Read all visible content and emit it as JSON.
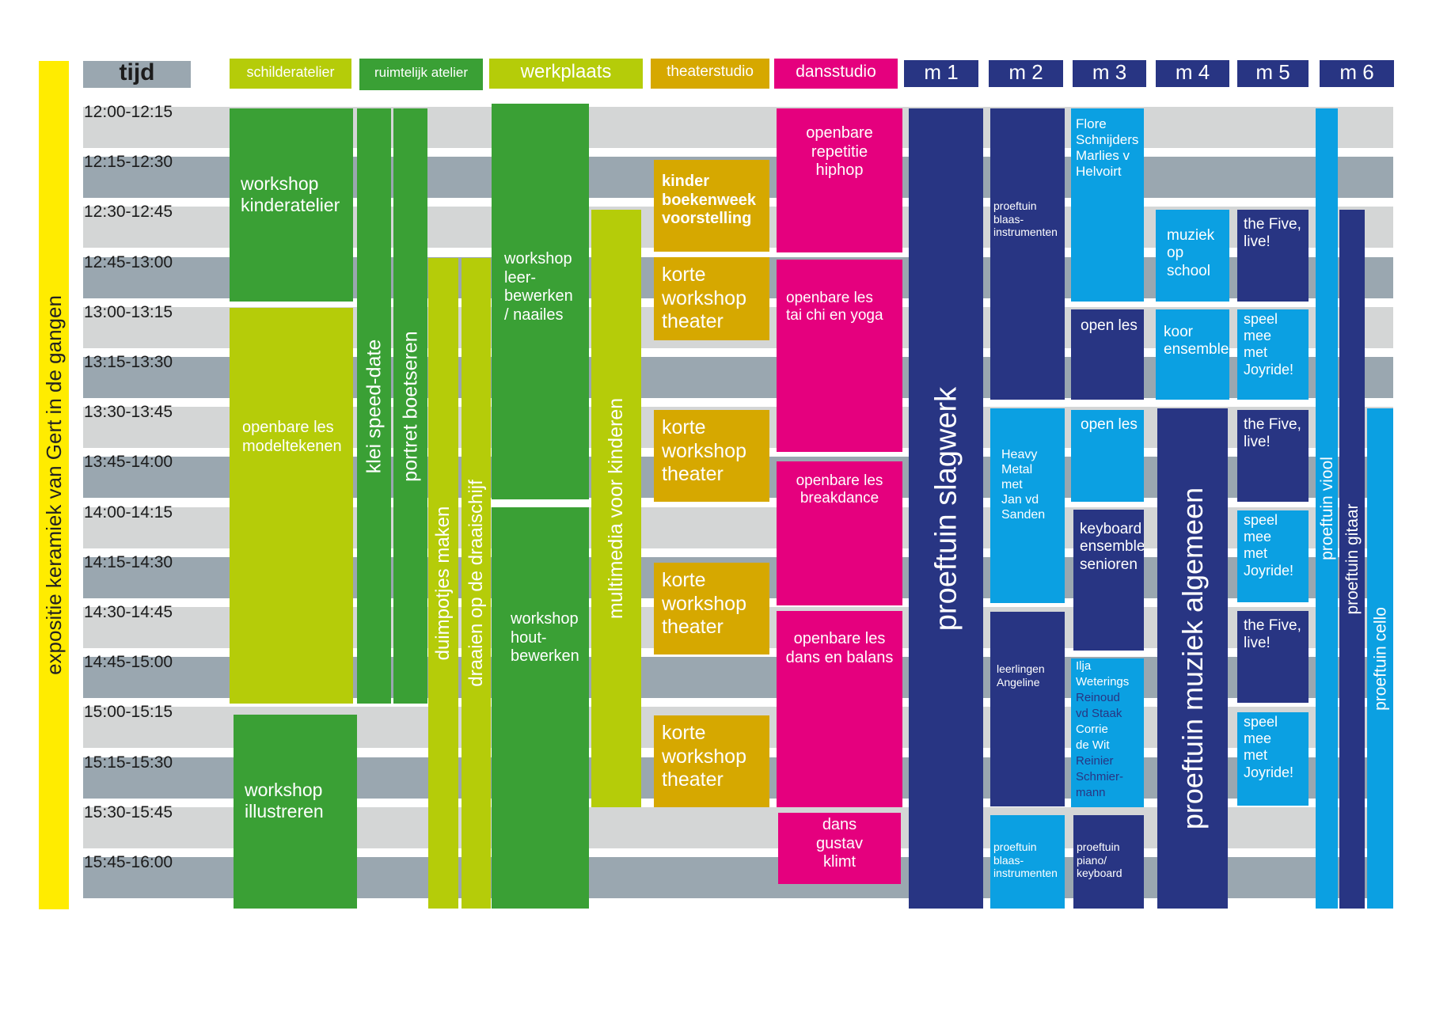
{
  "colors": {
    "light_row": "#d4d6d6",
    "dark_row": "#9aa7b0",
    "yellow": "#ffec00",
    "lime": "#b5cc09",
    "green": "#3aa035",
    "ochre": "#d6a800",
    "magenta": "#e5007e",
    "navy": "#283583",
    "sky": "#0ba0e2",
    "time_header": "#9aa7b0"
  },
  "side_label": "expositie keramiek van Gert in de gangen",
  "headers": [
    {
      "id": "tijd",
      "label": "tijd",
      "color": "time_header"
    },
    {
      "id": "schilderatelier",
      "label": "schilderatelier",
      "color": "lime"
    },
    {
      "id": "ruimtelijk",
      "label": "ruimtelijk atelier",
      "color": "green"
    },
    {
      "id": "werkplaats",
      "label": "werkplaats",
      "color": "lime"
    },
    {
      "id": "theaterstudio",
      "label": "theaterstudio",
      "color": "ochre"
    },
    {
      "id": "dansstudio",
      "label": "dansstudio",
      "color": "magenta"
    },
    {
      "id": "m1",
      "label": "m 1",
      "color": "navy"
    },
    {
      "id": "m2",
      "label": "m 2",
      "color": "navy"
    },
    {
      "id": "m3",
      "label": "m 3",
      "color": "navy"
    },
    {
      "id": "m4",
      "label": "m 4",
      "color": "navy"
    },
    {
      "id": "m5",
      "label": "m 5",
      "color": "navy"
    },
    {
      "id": "m6",
      "label": "m 6",
      "color": "navy"
    }
  ],
  "time_slots": [
    "12:00-12:15",
    "12:15-12:30",
    "12:30-12:45",
    "12:45-13:00",
    "13:00-13:15",
    "13:15-13:30",
    "13:30-13:45",
    "13:45-14:00",
    "14:00-14:15",
    "14:15-14:30",
    "14:30-14:45",
    "14:45-15:00",
    "15:00-15:15",
    "15:15-15:30",
    "15:30-15:45",
    "15:45-16:00"
  ],
  "events": [
    {
      "id": "workshop-kinderatelier",
      "text": "workshop\nkinderatelier",
      "color": "green",
      "room": "schilderatelier"
    },
    {
      "id": "openbare-les-modeltekenen",
      "text": "openbare les\nmodeltekenen",
      "color": "lime",
      "room": "schilderatelier"
    },
    {
      "id": "workshop-illustreren",
      "text": "workshop\nillustreren",
      "color": "green",
      "room": "schilderatelier"
    },
    {
      "id": "klei-speed-date",
      "text": "klei speed-date",
      "color": "green",
      "room": "ruimtelijk atelier"
    },
    {
      "id": "portret-boetseren",
      "text": "portret boetseren",
      "color": "green",
      "room": "ruimtelijk atelier"
    },
    {
      "id": "duimpotjes-maken",
      "text": "duimpotjes maken",
      "color": "lime",
      "room": "ruimtelijk atelier"
    },
    {
      "id": "draaien-op-de-draaischijf",
      "text": "draaien op de draaischijf",
      "color": "lime",
      "room": "ruimtelijk atelier"
    },
    {
      "id": "workshop-leerbewerken",
      "text": "workshop\n leer-\n bewerken\n / naailes",
      "color": "green",
      "room": "werkplaats"
    },
    {
      "id": "workshop-houtbewerken",
      "text": "workshop\nhout-\nbewerken",
      "color": "green",
      "room": "werkplaats"
    },
    {
      "id": "multimedia-voor-kinderen",
      "text": "multimedia voor kinderen",
      "color": "lime",
      "room": "werkplaats"
    },
    {
      "id": "kinderboekenweek-voorstelling",
      "text": "kinder\nboekenweek\nvoorstelling",
      "color": "ochre",
      "room": "theaterstudio"
    },
    {
      "id": "korte-workshop-theater-1",
      "text": "korte\nworkshop\ntheater",
      "color": "ochre",
      "room": "theaterstudio"
    },
    {
      "id": "korte-workshop-theater-2",
      "text": "korte\nworkshop\ntheater",
      "color": "ochre",
      "room": "theaterstudio"
    },
    {
      "id": "korte-workshop-theater-3",
      "text": "korte\nworkshop\ntheater",
      "color": "ochre",
      "room": "theaterstudio"
    },
    {
      "id": "korte-workshop-theater-4",
      "text": "korte\nworkshop\ntheater",
      "color": "ochre",
      "room": "theaterstudio"
    },
    {
      "id": "openbare-repetitie-hiphop",
      "text": "openbare\nrepetitie\nhiphop",
      "color": "magenta",
      "room": "dansstudio"
    },
    {
      "id": "openbare-les-tai-chi",
      "text": "openbare les\ntai chi en yoga",
      "color": "magenta",
      "room": "dansstudio"
    },
    {
      "id": "openbare-les-breakdance",
      "text": "openbare les\nbreakdance",
      "color": "magenta",
      "room": "dansstudio"
    },
    {
      "id": "openbare-les-dans-en-balans",
      "text": "openbare les\ndans en balans",
      "color": "magenta",
      "room": "dansstudio"
    },
    {
      "id": "dans-gustav-klimt",
      "text": "dans\ngustav\nklimt",
      "color": "magenta",
      "room": "dansstudio"
    },
    {
      "id": "proeftuin-slagwerk",
      "text": "proeftuin slagwerk",
      "color": "navy",
      "room": "m 1"
    },
    {
      "id": "proeftuin-blaasinstrumenten-1",
      "text": "proeftuin\nblaas-\ninstrumenten",
      "color": "navy",
      "room": "m 2"
    },
    {
      "id": "heavy-metal",
      "text": "Heavy\nMetal\nmet\nJan vd\nSanden",
      "color": "sky",
      "room": "m 2"
    },
    {
      "id": "leerlingen-angeline",
      "text": "leerlingen\nAngeline",
      "color": "navy",
      "room": "m 2"
    },
    {
      "id": "proeftuin-blaasinstrumenten-2",
      "text": "proeftuin\nblaas-\ninstrumenten",
      "color": "sky",
      "room": "m 2"
    },
    {
      "id": "flore-schnijders",
      "text": "Flore\nSchnijders\nMarlies  v\nHelvoirt",
      "color": "sky",
      "room": "m 3"
    },
    {
      "id": "open-les-1",
      "text": "open les",
      "color": "navy",
      "room": "m 3"
    },
    {
      "id": "open-les-2",
      "text": "open les",
      "color": "sky",
      "room": "m 3"
    },
    {
      "id": "keyboard-ensemble-senioren",
      "text": "keyboard\nensemble\nsenioren",
      "color": "navy",
      "room": "m 3"
    },
    {
      "id": "proeftuin-piano-keyboard",
      "text": "proeftuin\npiano/\nkeyboard",
      "color": "navy",
      "room": "m 3"
    },
    {
      "id": "muziek-op-school",
      "text": "muziek\nop\nschool",
      "color": "sky",
      "room": "m 4"
    },
    {
      "id": "koor-ensemble",
      "text": "koor\nensemble",
      "color": "sky",
      "room": "m 4"
    },
    {
      "id": "proeftuin-muziek-algemeen",
      "text": "proeftuin muziek algemeen",
      "color": "navy",
      "room": "m 4"
    },
    {
      "id": "the-five-live-1",
      "text": "the Five,\nlive!",
      "color": "navy",
      "room": "m 5"
    },
    {
      "id": "speel-mee-joyride-1",
      "text": "speel\nmee\nmet\nJoyride!",
      "color": "sky",
      "room": "m 5"
    },
    {
      "id": "the-five-live-2",
      "text": "the Five,\nlive!",
      "color": "navy",
      "room": "m 5"
    },
    {
      "id": "speel-mee-joyride-2",
      "text": "speel\nmee\nmet\nJoyride!",
      "color": "sky",
      "room": "m 5"
    },
    {
      "id": "the-five-live-3",
      "text": "the Five,\nlive!",
      "color": "navy",
      "room": "m 5"
    },
    {
      "id": "speel-mee-joyride-3",
      "text": "speel\nmee\nmet\nJoyride!",
      "color": "sky",
      "room": "m 5"
    },
    {
      "id": "proeftuin-viool",
      "text": "proeftuin viool",
      "color": "sky",
      "room": "m 6"
    },
    {
      "id": "proeftuin-gitaar",
      "text": "proeftuin gitaar",
      "color": "navy",
      "room": "m 6"
    },
    {
      "id": "proeftuin-cello",
      "text": "proeftuin cello",
      "color": "sky",
      "room": "m 6"
    }
  ],
  "ilja_block": {
    "lines": [
      {
        "text": "Ilja",
        "color": "#ffffff"
      },
      {
        "text": "Weterings",
        "color": "#ffffff"
      },
      {
        "text": "Reinoud",
        "color": "#283583"
      },
      {
        "text": "vd Staak",
        "color": "#283583"
      },
      {
        "text": "Corrie",
        "color": "#ffffff"
      },
      {
        "text": "de Wit",
        "color": "#ffffff"
      },
      {
        "text": "Reinier",
        "color": "#283583"
      },
      {
        "text": "Schmier-",
        "color": "#283583"
      },
      {
        "text": "mann",
        "color": "#283583"
      }
    ],
    "color": "sky",
    "room": "m 3"
  }
}
